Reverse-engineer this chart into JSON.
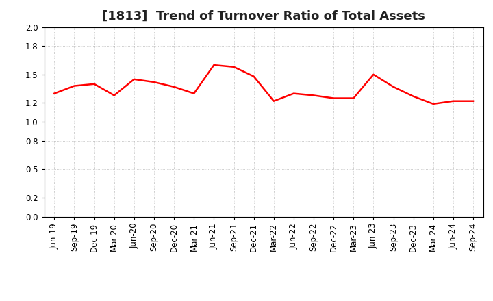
{
  "title": "[1813]  Trend of Turnover Ratio of Total Assets",
  "x_labels": [
    "Jun-19",
    "Sep-19",
    "Dec-19",
    "Mar-20",
    "Jun-20",
    "Sep-20",
    "Dec-20",
    "Mar-21",
    "Jun-21",
    "Sep-21",
    "Dec-21",
    "Mar-22",
    "Jun-22",
    "Sep-22",
    "Dec-22",
    "Mar-23",
    "Jun-23",
    "Sep-23",
    "Dec-23",
    "Mar-24",
    "Jun-24",
    "Sep-24"
  ],
  "y_values": [
    1.3,
    1.38,
    1.4,
    1.28,
    1.45,
    1.42,
    1.37,
    1.3,
    1.6,
    1.58,
    1.48,
    1.22,
    1.3,
    1.28,
    1.25,
    1.25,
    1.5,
    1.37,
    1.27,
    1.19,
    1.22,
    1.22
  ],
  "line_color": "#ff0000",
  "line_width": 1.8,
  "ylim": [
    0.0,
    2.0
  ],
  "yticks": [
    0.0,
    0.2,
    0.5,
    0.8,
    1.0,
    1.2,
    1.5,
    1.8,
    2.0
  ],
  "ytick_labels": [
    "0.0",
    "0.2",
    "0.5",
    "0.8",
    "1.0",
    "1.2",
    "1.5",
    "1.8",
    "2.0"
  ],
  "grid_color": "#bbbbbb",
  "grid_linestyle": ":",
  "background_color": "#ffffff",
  "title_fontsize": 13,
  "tick_fontsize": 8.5,
  "title_color": "#222222"
}
